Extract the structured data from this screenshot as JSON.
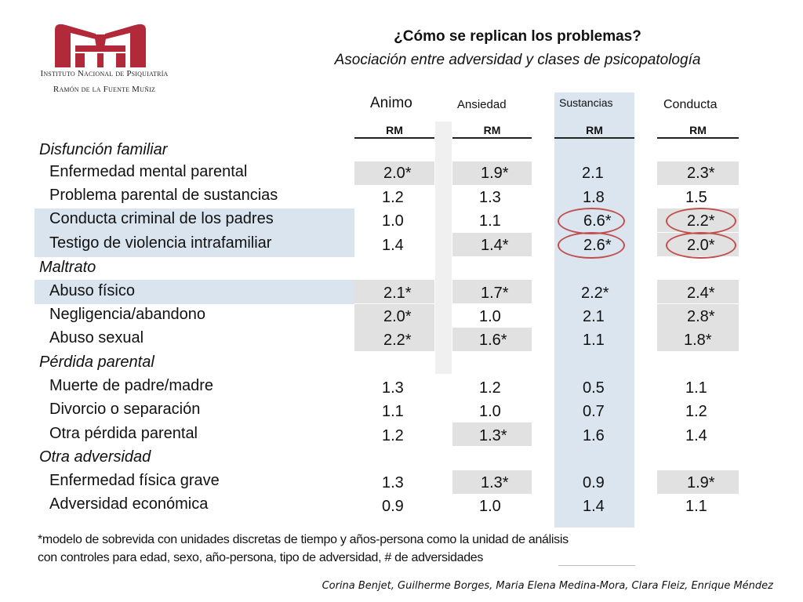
{
  "institution": {
    "line1": "Instituto Nacional de Psiquiatría",
    "line2": "Ramón de la Fuente Muñiz",
    "logo_color": "#b22a3a"
  },
  "title": "¿Cómo se replican los problemas?",
  "subtitle": "Asociación entre adversidad y clases de psicopatología",
  "columns": [
    {
      "name": "Animo",
      "stat": "RM"
    },
    {
      "name": "Ansiedad",
      "stat": "RM"
    },
    {
      "name": "Sustancias",
      "stat": "RM"
    },
    {
      "name": "Conducta",
      "stat": "RM"
    }
  ],
  "groups": [
    {
      "category": "Disfunción familiar",
      "rows": [
        {
          "label": "Enfermedad mental parental",
          "values": [
            "2.0*",
            "1.9*",
            "2.1",
            "2.3*"
          ]
        },
        {
          "label": "Problema parental de sustancias",
          "values": [
            "1.2",
            "1.3",
            "1.8",
            "1.5"
          ]
        },
        {
          "label": "Conducta criminal de los padres",
          "values": [
            "1.0",
            "1.1",
            "6.6*",
            "2.2*"
          ]
        },
        {
          "label": "Testigo de violencia intrafamiliar",
          "values": [
            "1.4",
            "1.4*",
            "2.6*",
            "2.0*"
          ]
        }
      ]
    },
    {
      "category": "Maltrato",
      "rows": [
        {
          "label": "Abuso físico",
          "values": [
            "2.1*",
            "1.7*",
            "2.2*",
            "2.4*"
          ]
        },
        {
          "label": "Negligencia/abandono",
          "values": [
            "2.0*",
            "1.0",
            "2.1",
            "2.8*"
          ]
        },
        {
          "label": "Abuso sexual",
          "values": [
            "2.2*",
            "1.6*",
            "1.1",
            "1.8*"
          ]
        }
      ]
    },
    {
      "category": "Pérdida parental",
      "rows": [
        {
          "label": "Muerte de padre/madre",
          "values": [
            "1.3",
            "1.2",
            "0.5",
            "1.1"
          ]
        },
        {
          "label": "Divorcio o separación",
          "values": [
            "1.1",
            "1.0",
            "0.7",
            "1.2"
          ]
        },
        {
          "label": "Otra pérdida parental",
          "values": [
            "1.2",
            "1.3*",
            "1.6",
            "1.4"
          ]
        }
      ]
    },
    {
      "category": "Otra adversidad",
      "rows": [
        {
          "label": "Enfermedad física grave",
          "values": [
            "1.3",
            "1.3*",
            "0.9",
            "1.9*"
          ]
        },
        {
          "label": "Adversidad económica",
          "values": [
            "0.9",
            "1.0",
            "1.4",
            "1.1"
          ]
        }
      ]
    }
  ],
  "footnote": {
    "line1": "*modelo de sobrevida con unidades discretas de tiempo y años-persona como la unidad de análisis",
    "line2": "con controles para edad, sexo, año-persona, tipo de adversidad, # de adversidades"
  },
  "authors": "Corina Benjet, Guilherme Borges, Maria Elena Medina-Mora, Clara Fleiz, Enrique Méndez",
  "colors": {
    "highlight_row": "#d9e4ef",
    "sustancias_column": "#dbe5f0",
    "significant_cell": "#e1e1e1",
    "circle": "#c0504d"
  }
}
